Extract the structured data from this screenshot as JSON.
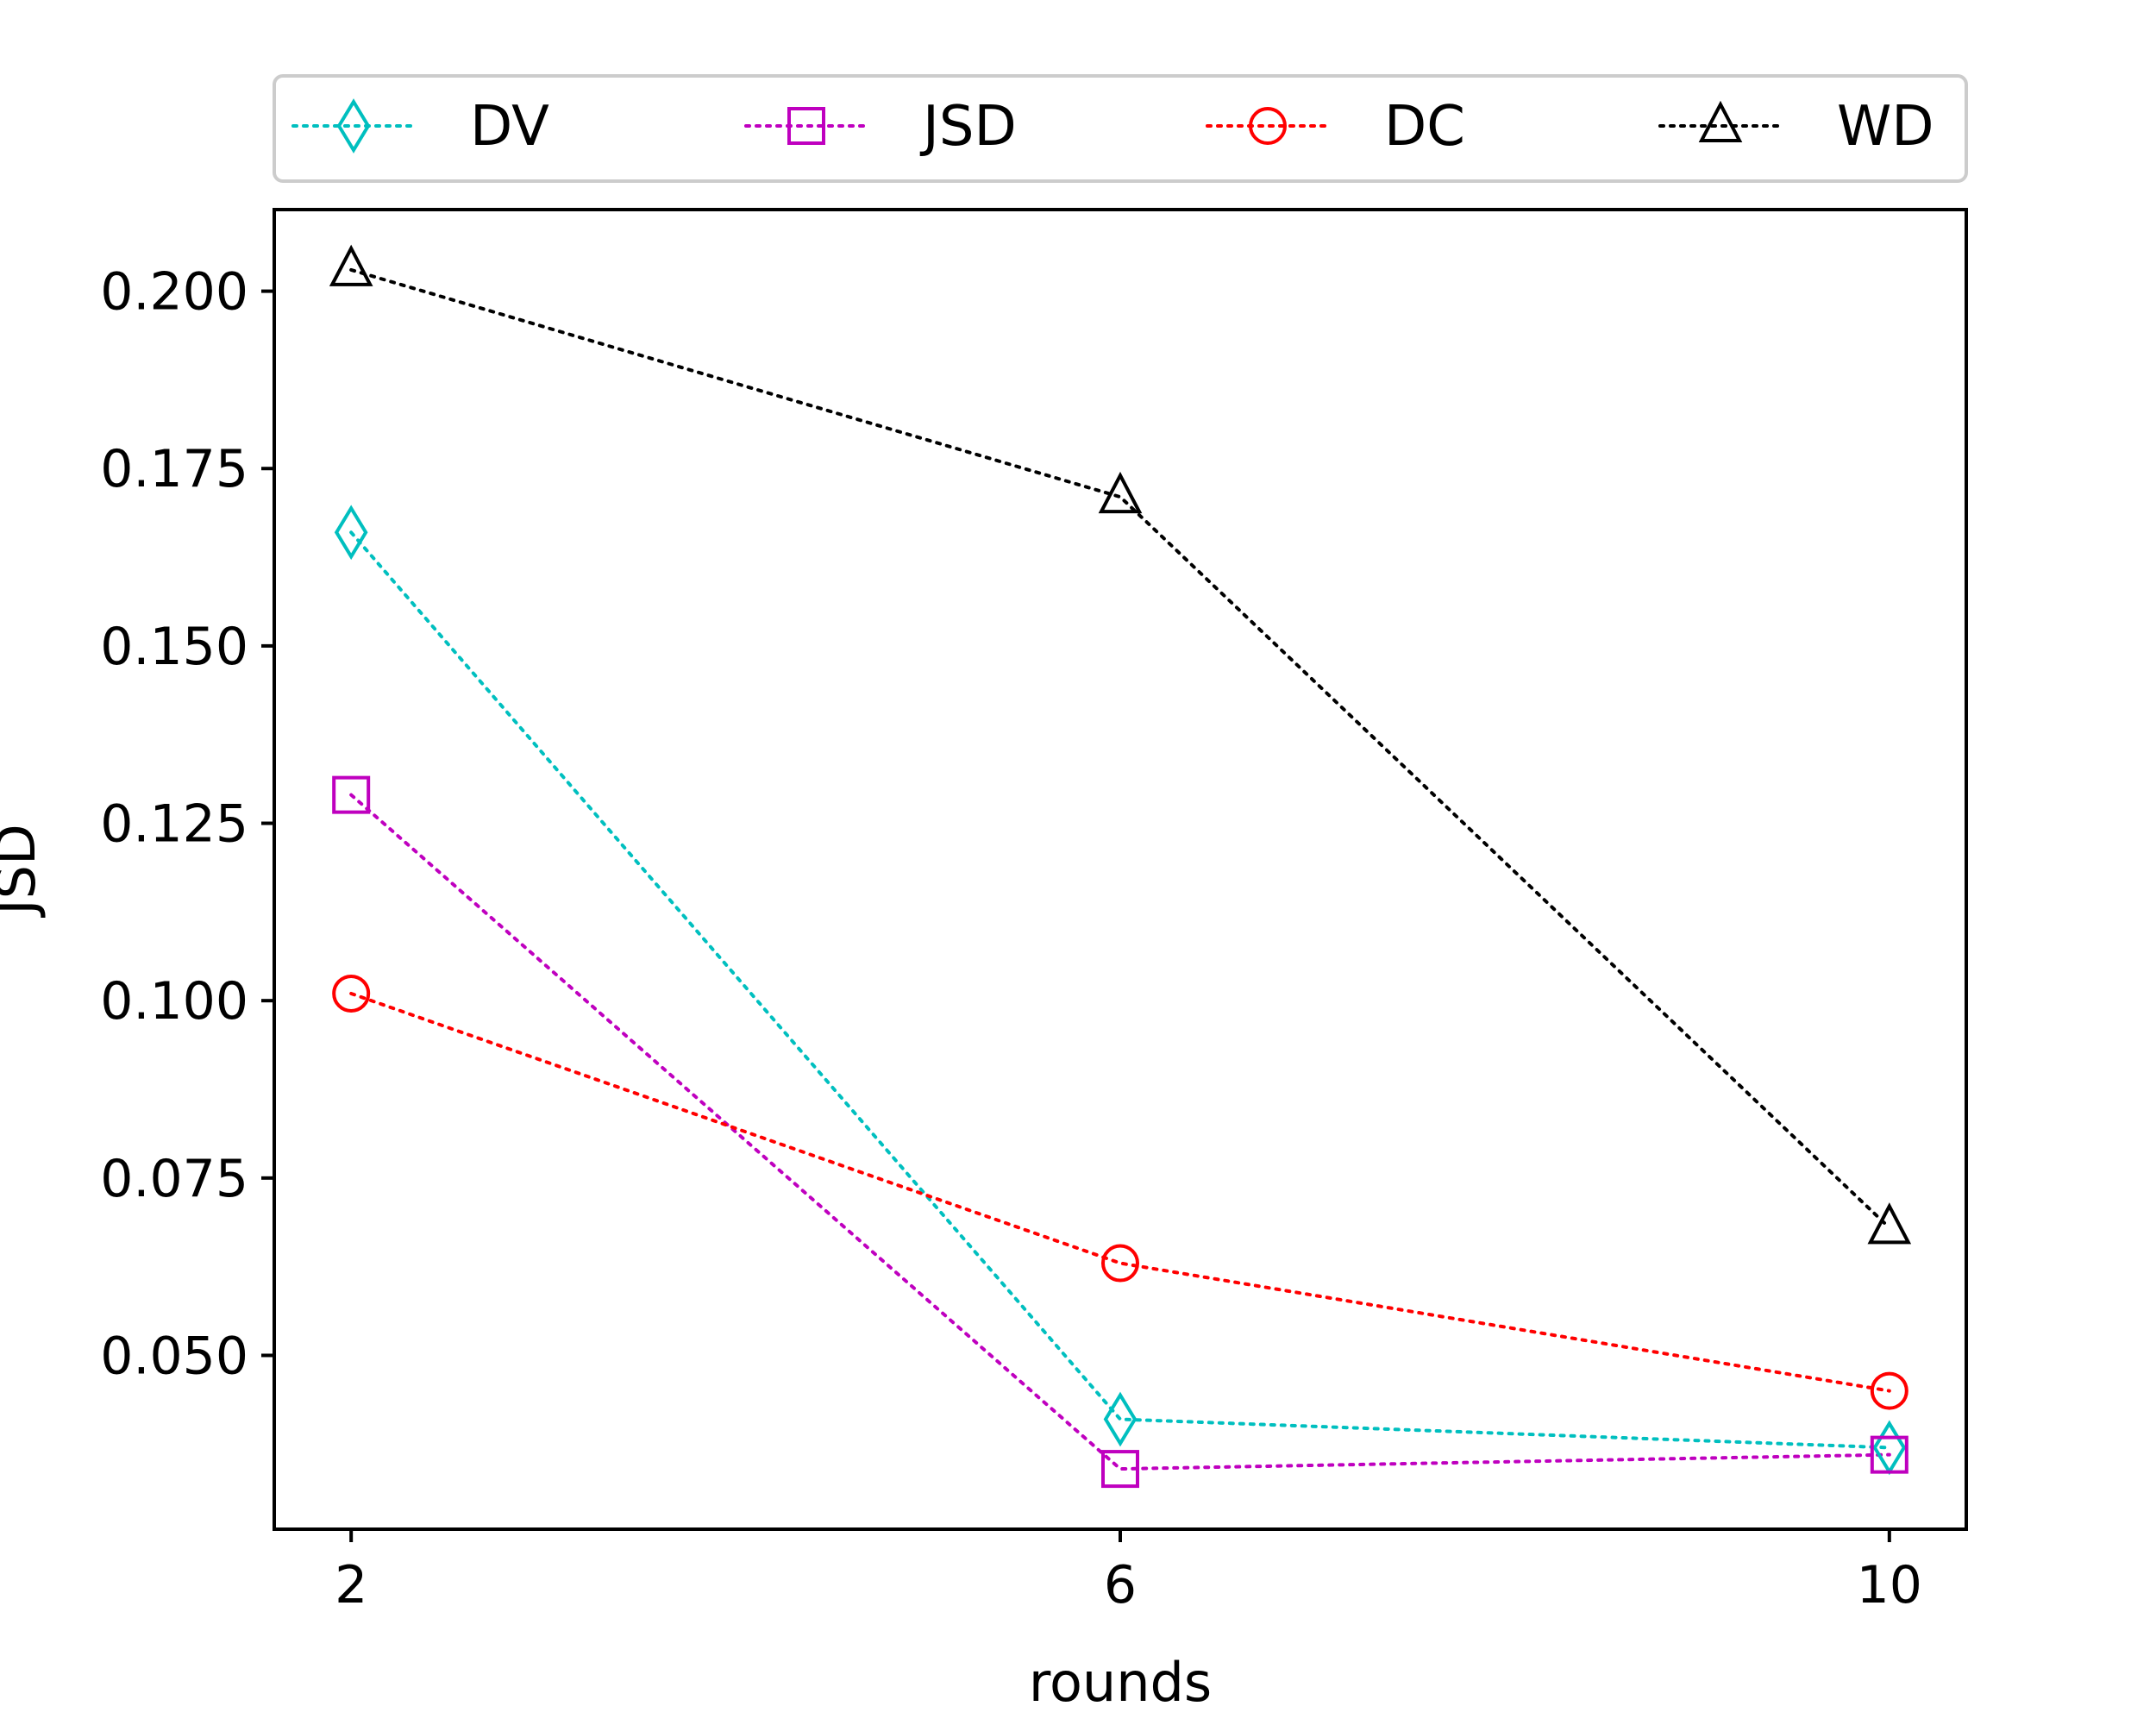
{
  "chart_data": {
    "type": "line",
    "title": "",
    "xlabel": "rounds",
    "ylabel": "JSD",
    "x": [
      2,
      6,
      10
    ],
    "x_tick_labels": [
      "2",
      "6",
      "10"
    ],
    "xlim": [
      1.6,
      10.4
    ],
    "ylim": [
      0.0255,
      0.2115
    ],
    "y_ticks": [
      0.05,
      0.075,
      0.1,
      0.125,
      0.15,
      0.175,
      0.2
    ],
    "y_tick_labels": [
      "0.050",
      "0.075",
      "0.100",
      "0.125",
      "0.150",
      "0.175",
      "0.200"
    ],
    "grid": false,
    "legend_position": "above-plot",
    "series": [
      {
        "name": "DV",
        "values": [
          0.166,
          0.041,
          0.037
        ],
        "color": "#00bfbf",
        "marker": "diamond",
        "linestyle": "dotted"
      },
      {
        "name": "JSD",
        "values": [
          0.129,
          0.034,
          0.036
        ],
        "color": "#bf00bf",
        "marker": "square",
        "linestyle": "dotted"
      },
      {
        "name": "DC",
        "values": [
          0.101,
          0.063,
          0.045
        ],
        "color": "#ff0000",
        "marker": "circle",
        "linestyle": "dotted"
      },
      {
        "name": "WD",
        "values": [
          0.203,
          0.171,
          0.068
        ],
        "color": "#000000",
        "marker": "triangle",
        "linestyle": "dotted"
      }
    ]
  }
}
